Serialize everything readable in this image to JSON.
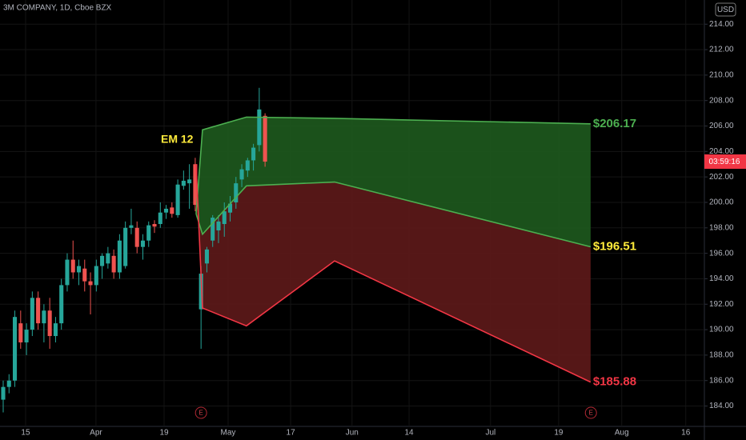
{
  "chart_data": {
    "type": "candlestick",
    "title": "3M COMPANY, 1D, Cboe BZX",
    "currency": "USD",
    "countdown": "03:59:16",
    "annotation": "EM 12",
    "earnings_marker": "E",
    "earnings_x": [
      30,
      97
    ],
    "up_color": "#26a69a",
    "down_color": "#ef5350",
    "x": [
      -4,
      -3,
      -2,
      -1,
      0,
      1,
      2,
      3,
      4,
      5,
      6,
      7,
      8,
      9,
      10,
      11,
      12,
      13,
      14,
      15,
      16,
      17,
      18,
      19,
      20,
      21,
      22,
      23,
      24,
      25,
      26,
      27,
      28,
      29,
      30,
      31,
      32,
      33,
      34,
      35,
      36,
      37,
      38,
      39,
      40,
      41
    ],
    "open": [
      184.5,
      185.5,
      186,
      190.5,
      189,
      190,
      192.5,
      190.5,
      191.5,
      189.5,
      190.5,
      193.5,
      195.5,
      194.5,
      194.8,
      193.8,
      193.5,
      195,
      195.2,
      195.8,
      194.5,
      195,
      198,
      198,
      196.5,
      197,
      198.3,
      198.3,
      199.2,
      199.6,
      199,
      201.3,
      201.5,
      203,
      191.6,
      195.2,
      197,
      197.8,
      198.3,
      199.2,
      200,
      201.8,
      202.5,
      203.3,
      204.5,
      206.8
    ],
    "high": [
      186,
      186.5,
      191.5,
      191.5,
      190.5,
      193,
      193,
      192,
      192.5,
      191,
      194,
      196,
      197,
      195.5,
      195.5,
      194.5,
      195.5,
      196,
      196.5,
      196.3,
      197.5,
      198.5,
      199.5,
      198.5,
      197.5,
      198.5,
      198.6,
      200,
      199.8,
      200,
      201.8,
      202.5,
      203,
      203.5,
      195,
      196.5,
      199,
      199,
      200,
      200.5,
      202,
      203,
      203.5,
      204.6,
      209,
      207
    ],
    "low": [
      183.5,
      185,
      185.5,
      188.5,
      188,
      189.5,
      190,
      189,
      188.5,
      189,
      190,
      193,
      194,
      193.5,
      193,
      191.2,
      193,
      194,
      194.8,
      194,
      194,
      194.8,
      197.5,
      196,
      195.5,
      196.5,
      197.6,
      198,
      198.7,
      198.8,
      198.8,
      201,
      199.5,
      199.3,
      188.5,
      194.5,
      196.5,
      196.8,
      197.3,
      198.5,
      199.5,
      201.2,
      202,
      202.5,
      204,
      202.8
    ],
    "close": [
      185.5,
      186,
      191,
      189,
      190,
      192.5,
      190.5,
      191.5,
      189.5,
      190.5,
      193.5,
      195.5,
      194.5,
      195,
      193.8,
      193.5,
      195,
      195.8,
      196,
      194.5,
      197,
      198,
      198.2,
      196.5,
      197,
      198.2,
      198.1,
      199.2,
      199.5,
      199.1,
      201.4,
      201.7,
      201.8,
      199.8,
      194.4,
      196.3,
      198.8,
      198.5,
      199.3,
      199.9,
      201.5,
      202.6,
      203.3,
      204.3,
      207.3,
      203.2
    ],
    "xlim": [
      -4.55,
      116.5
    ],
    "ylim": [
      182.4,
      215.9
    ],
    "xticks": [
      {
        "value": -0.15,
        "label": "15"
      },
      {
        "value": 11.95,
        "label": "Apr"
      },
      {
        "value": 23.65,
        "label": "19"
      },
      {
        "value": 34.65,
        "label": "May"
      },
      {
        "value": 45.4,
        "label": "17"
      },
      {
        "value": 55.95,
        "label": "Jun"
      },
      {
        "value": 65.75,
        "label": "14"
      },
      {
        "value": 79.75,
        "label": "Jul"
      },
      {
        "value": 91.45,
        "label": "19"
      },
      {
        "value": 102.3,
        "label": "Aug"
      },
      {
        "value": 113.3,
        "label": "16"
      }
    ],
    "yticks": [
      {
        "value": 184,
        "label": "184.00"
      },
      {
        "value": 186,
        "label": "186.00"
      },
      {
        "value": 188,
        "label": "188.00"
      },
      {
        "value": 190,
        "label": "190.00"
      },
      {
        "value": 192,
        "label": "192.00"
      },
      {
        "value": 194,
        "label": "194.00"
      },
      {
        "value": 196,
        "label": "196.00"
      },
      {
        "value": 198,
        "label": "198.00"
      },
      {
        "value": 200,
        "label": "200.00"
      },
      {
        "value": 202,
        "label": "202.00"
      },
      {
        "value": 204,
        "label": "204.00"
      },
      {
        "value": 206,
        "label": "206.00"
      },
      {
        "value": 208,
        "label": "208.00"
      },
      {
        "value": 210,
        "label": "210.00"
      },
      {
        "value": 212,
        "label": "212.00"
      },
      {
        "value": 214,
        "label": "214.00"
      }
    ],
    "grid": true,
    "projection": {
      "x": [
        29.15,
        30.25,
        37.8,
        52.95,
        96.95
      ],
      "series": [
        {
          "color": "#4caf50",
          "label_color": "#4caf50",
          "values": [
            199.1,
            205.7,
            206.7,
            206.6,
            206.17
          ],
          "value_labels": [
            null,
            null,
            null,
            null,
            "$206.17"
          ]
        },
        {
          "color": "#4caf50",
          "label_color": "#ffeb3b",
          "values": [
            199.1,
            197.5,
            201.3,
            201.6,
            196.51
          ],
          "value_labels": [
            null,
            null,
            null,
            null,
            "$196.51"
          ]
        },
        {
          "color": "#f23645",
          "label_color": "#f23645",
          "values": [
            203.0,
            191.7,
            190.3,
            195.4,
            185.88
          ],
          "value_labels": [
            null,
            null,
            null,
            null,
            "$185.88"
          ]
        }
      ],
      "area_colors": [
        "#1e5a1e",
        "#5e1a1a"
      ]
    }
  }
}
